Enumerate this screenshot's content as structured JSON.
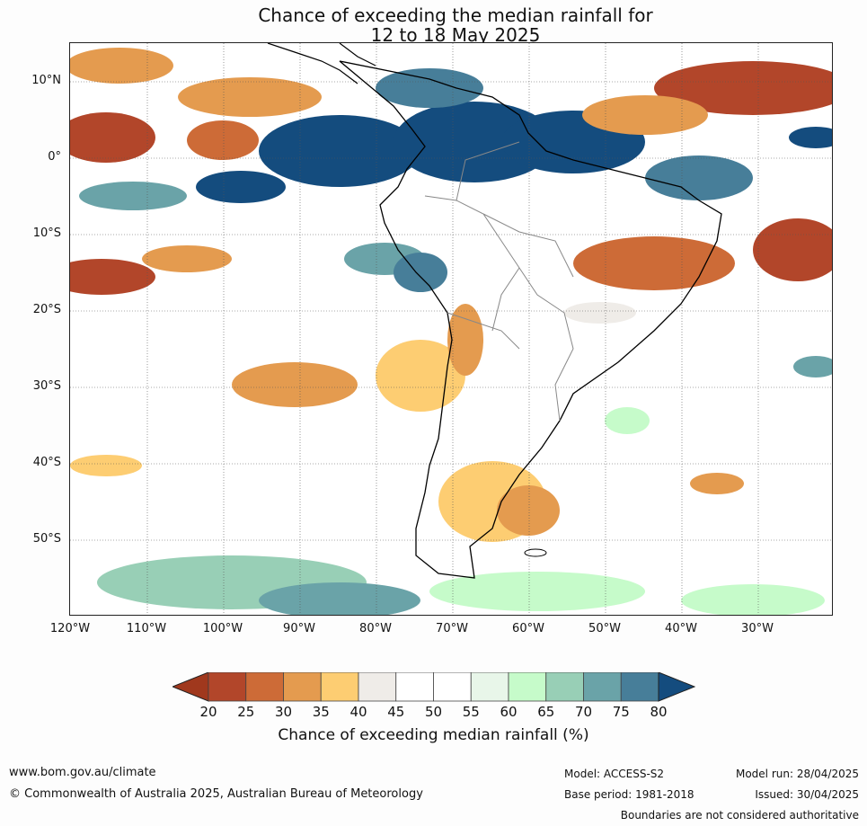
{
  "title": {
    "line1": "Chance of exceeding the median rainfall for",
    "line2": "12 to 18 May 2025"
  },
  "map": {
    "lat_labels": [
      "10°N",
      "0°",
      "10°S",
      "20°S",
      "30°S",
      "40°S",
      "50°S"
    ],
    "lon_labels": [
      "120°W",
      "110°W",
      "100°W",
      "90°W",
      "80°W",
      "70°W",
      "60°W",
      "50°W",
      "40°W",
      "30°W"
    ]
  },
  "colorbar": {
    "ticks": [
      "20",
      "25",
      "30",
      "35",
      "40",
      "45",
      "50",
      "55",
      "60",
      "65",
      "70",
      "75",
      "80"
    ],
    "colors": [
      "#a0381d",
      "#b2462a",
      "#cd6b37",
      "#e49b4f",
      "#fdcd72",
      "#efece8",
      "#ffffff",
      "#ffffff",
      "#e8f6e9",
      "#c6fbca",
      "#98cfb6",
      "#6aa3a8",
      "#477e99",
      "#144c7e"
    ],
    "label": "Chance of exceeding median rainfall (%)"
  },
  "footer": {
    "url": "www.bom.gov.au/climate",
    "copyright": "© Commonwealth of Australia 2025, Australian Bureau of Meteorology",
    "model": "Model: ACCESS-S2",
    "base_period": "Base period: 1981-2018",
    "model_run": "Model run: 28/04/2025",
    "issued": "Issued: 30/04/2025",
    "disclaimer": "Boundaries are not considered authoritative"
  }
}
